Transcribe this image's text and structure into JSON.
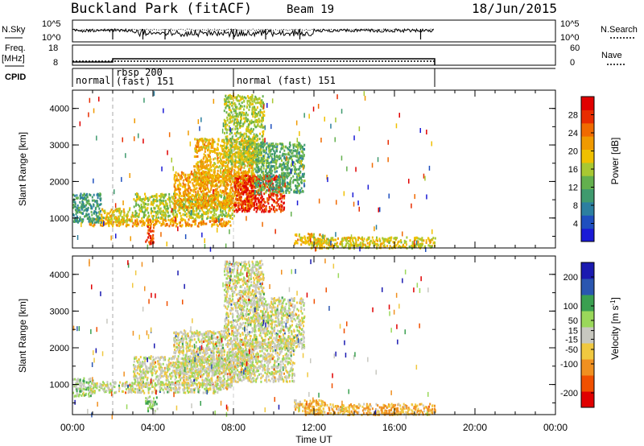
{
  "header": {
    "station": "Buckland Park (fitACF)",
    "beam": "Beam 19",
    "date": "18/Jun/2015"
  },
  "noise_panel": {
    "left_label": "N.Sky",
    "right_label": "N.Search",
    "left_ticks": [
      "10^5",
      "10^0"
    ],
    "right_ticks": [
      "10^5",
      "10^0"
    ]
  },
  "freq_panel": {
    "left_label_1": "Freq.",
    "left_label_2": "[MHz]",
    "right_label": "Nave",
    "left_ticks": [
      "18",
      "8"
    ],
    "right_ticks": [
      "60",
      "0"
    ]
  },
  "cpid_panel": {
    "label": "CPID",
    "segments": [
      {
        "start_hour": 0,
        "end_hour": 2,
        "text": "normal"
      },
      {
        "start_hour": 2,
        "end_hour": 8,
        "text_1": "rbsp 200",
        "text_2": "(fast) 151"
      },
      {
        "start_hour": 8,
        "end_hour": 18,
        "text": "normal (fast) 151"
      }
    ]
  },
  "chart_data": [
    {
      "type": "heatmap",
      "title": "",
      "xlabel": "",
      "ylabel": "Slant Range [km]",
      "xlim": [
        0,
        24
      ],
      "ylim": [
        180,
        4500
      ],
      "ytick_labels": [
        "1000",
        "2000",
        "3000",
        "4000"
      ],
      "yticks": [
        1000,
        2000,
        3000,
        4000
      ],
      "colorbar": {
        "label": "Power [dB]",
        "tick_labels": [
          "28",
          "24",
          "20",
          "16",
          "12",
          "8",
          "4"
        ],
        "ticks": [
          28,
          24,
          20,
          16,
          12,
          8,
          4
        ],
        "range": [
          0,
          32
        ],
        "colors": [
          "#1a1ad6",
          "#1f4fbf",
          "#2c7fa0",
          "#3f9a6e",
          "#63b04e",
          "#a8c832",
          "#f0c000",
          "#f09a00",
          "#f06a00",
          "#e82c00",
          "#e00000"
        ]
      },
      "regions": [
        {
          "x": [
            0.8,
            7.9
          ],
          "y": [
            800,
            1000
          ],
          "value": 22
        },
        {
          "x": [
            0.0,
            1.4
          ],
          "y": [
            900,
            1700
          ],
          "value": 10
        },
        {
          "x": [
            1.4,
            3.0
          ],
          "y": [
            900,
            1300
          ],
          "value": 18
        },
        {
          "x": [
            3.0,
            8.0
          ],
          "y": [
            1000,
            1700
          ],
          "value": 16
        },
        {
          "x": [
            5.0,
            9.0
          ],
          "y": [
            1300,
            2300
          ],
          "value": 22
        },
        {
          "x": [
            6.0,
            9.0
          ],
          "y": [
            1900,
            3200
          ],
          "value": 20
        },
        {
          "x": [
            7.5,
            9.5
          ],
          "y": [
            2500,
            4400
          ],
          "value": 16
        },
        {
          "x": [
            8.0,
            10.5
          ],
          "y": [
            1200,
            2200
          ],
          "value": 28
        },
        {
          "x": [
            9.0,
            11.5
          ],
          "y": [
            1700,
            3100
          ],
          "value": 12
        },
        {
          "x": [
            3.6,
            4.0
          ],
          "y": [
            300,
            800
          ],
          "value": 26
        },
        {
          "x": [
            11.0,
            12.5
          ],
          "y": [
            300,
            600
          ],
          "value": 20
        },
        {
          "x": [
            11.5,
            18.0
          ],
          "y": [
            200,
            500
          ],
          "value": 18
        }
      ]
    },
    {
      "type": "heatmap",
      "title": "",
      "xlabel": "Time UT",
      "ylabel": "Slant Range [km]",
      "xlim": [
        0,
        24
      ],
      "ylim": [
        180,
        4500
      ],
      "xtick_labels": [
        "00:00",
        "04:00",
        "08:00",
        "12:00",
        "16:00",
        "20:00",
        "00:00"
      ],
      "xticks": [
        0,
        4,
        8,
        12,
        16,
        20,
        24
      ],
      "ytick_labels": [
        "1000",
        "2000",
        "3000",
        "4000"
      ],
      "yticks": [
        1000,
        2000,
        3000,
        4000
      ],
      "colorbar": {
        "label": "Velocity [m s^-1]",
        "tick_labels": [
          "200",
          "100",
          "50",
          "15",
          "-15",
          "-50",
          "-100",
          "-200"
        ],
        "ticks": [
          200,
          100,
          50,
          15,
          -15,
          -50,
          -100,
          -200
        ],
        "range": [
          -250,
          250
        ],
        "colors": [
          "#e00000",
          "#f05000",
          "#f09020",
          "#f0c840",
          "#c8c8c0",
          "#9ad85a",
          "#3aa050",
          "#2a56b0",
          "#1a1ab0"
        ]
      },
      "regions": [
        {
          "x": [
            0.0,
            1.0
          ],
          "y": [
            700,
            1200
          ],
          "value": 60
        },
        {
          "x": [
            0.8,
            7.9
          ],
          "y": [
            800,
            1100
          ],
          "value": 0
        },
        {
          "x": [
            3.0,
            8.0
          ],
          "y": [
            1000,
            1800
          ],
          "value": 0
        },
        {
          "x": [
            5.0,
            9.0
          ],
          "y": [
            1300,
            2500
          ],
          "value": 0
        },
        {
          "x": [
            7.5,
            9.5
          ],
          "y": [
            2500,
            4400
          ],
          "value": 0
        },
        {
          "x": [
            8.0,
            11.0
          ],
          "y": [
            1100,
            2200
          ],
          "value": 0
        },
        {
          "x": [
            9.0,
            11.5
          ],
          "y": [
            2000,
            3400
          ],
          "value": 0
        },
        {
          "x": [
            3.6,
            4.2
          ],
          "y": [
            300,
            700
          ],
          "value": 60
        },
        {
          "x": [
            11.0,
            12.5
          ],
          "y": [
            300,
            600
          ],
          "value": -60
        },
        {
          "x": [
            11.5,
            18.0
          ],
          "y": [
            200,
            500
          ],
          "value": -80
        }
      ]
    }
  ]
}
